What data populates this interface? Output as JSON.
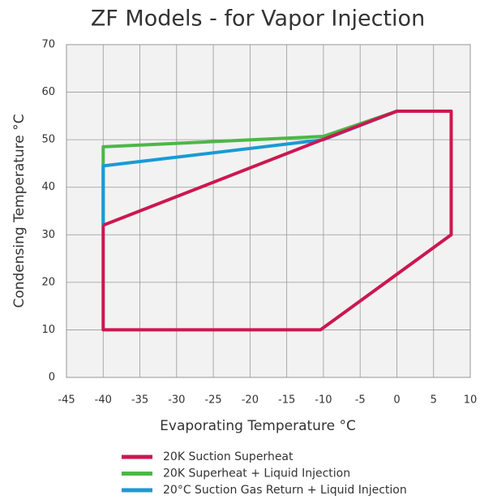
{
  "chart_data": {
    "type": "line",
    "title": "ZF Models - for Vapor Injection",
    "x_label": "Evaporating Temperature °C",
    "y_label": "Condensing Temperature °C",
    "xlim": [
      -45,
      10
    ],
    "xticks": [
      -45,
      -40,
      -35,
      -30,
      -25,
      -20,
      -15,
      -10,
      -5,
      0,
      5,
      10
    ],
    "ylim": [
      0,
      70
    ],
    "yticks": [
      0,
      10,
      20,
      30,
      40,
      50,
      60,
      70
    ],
    "grid": true,
    "legend": "bottom",
    "series": [
      {
        "name": "20K Superheat + Liquid Injection",
        "color": "#4cb748",
        "x": [
          -40,
          -40,
          -10,
          0
        ],
        "values": [
          32,
          48.5,
          50.7,
          56
        ]
      },
      {
        "name": "20°C Suction Gas Return + Liquid Injection",
        "color": "#1a9ad6",
        "x": [
          -40,
          -40,
          -10,
          0
        ],
        "values": [
          32,
          44.5,
          50,
          56
        ]
      },
      {
        "name": "20K Suction Superheat",
        "color": "#cc1751",
        "x": [
          -40,
          -10.5,
          0,
          7.4,
          7.4,
          -10.4,
          -40,
          -40
        ],
        "values": [
          32,
          49.8,
          56,
          56,
          30,
          10,
          10,
          32
        ]
      }
    ]
  }
}
